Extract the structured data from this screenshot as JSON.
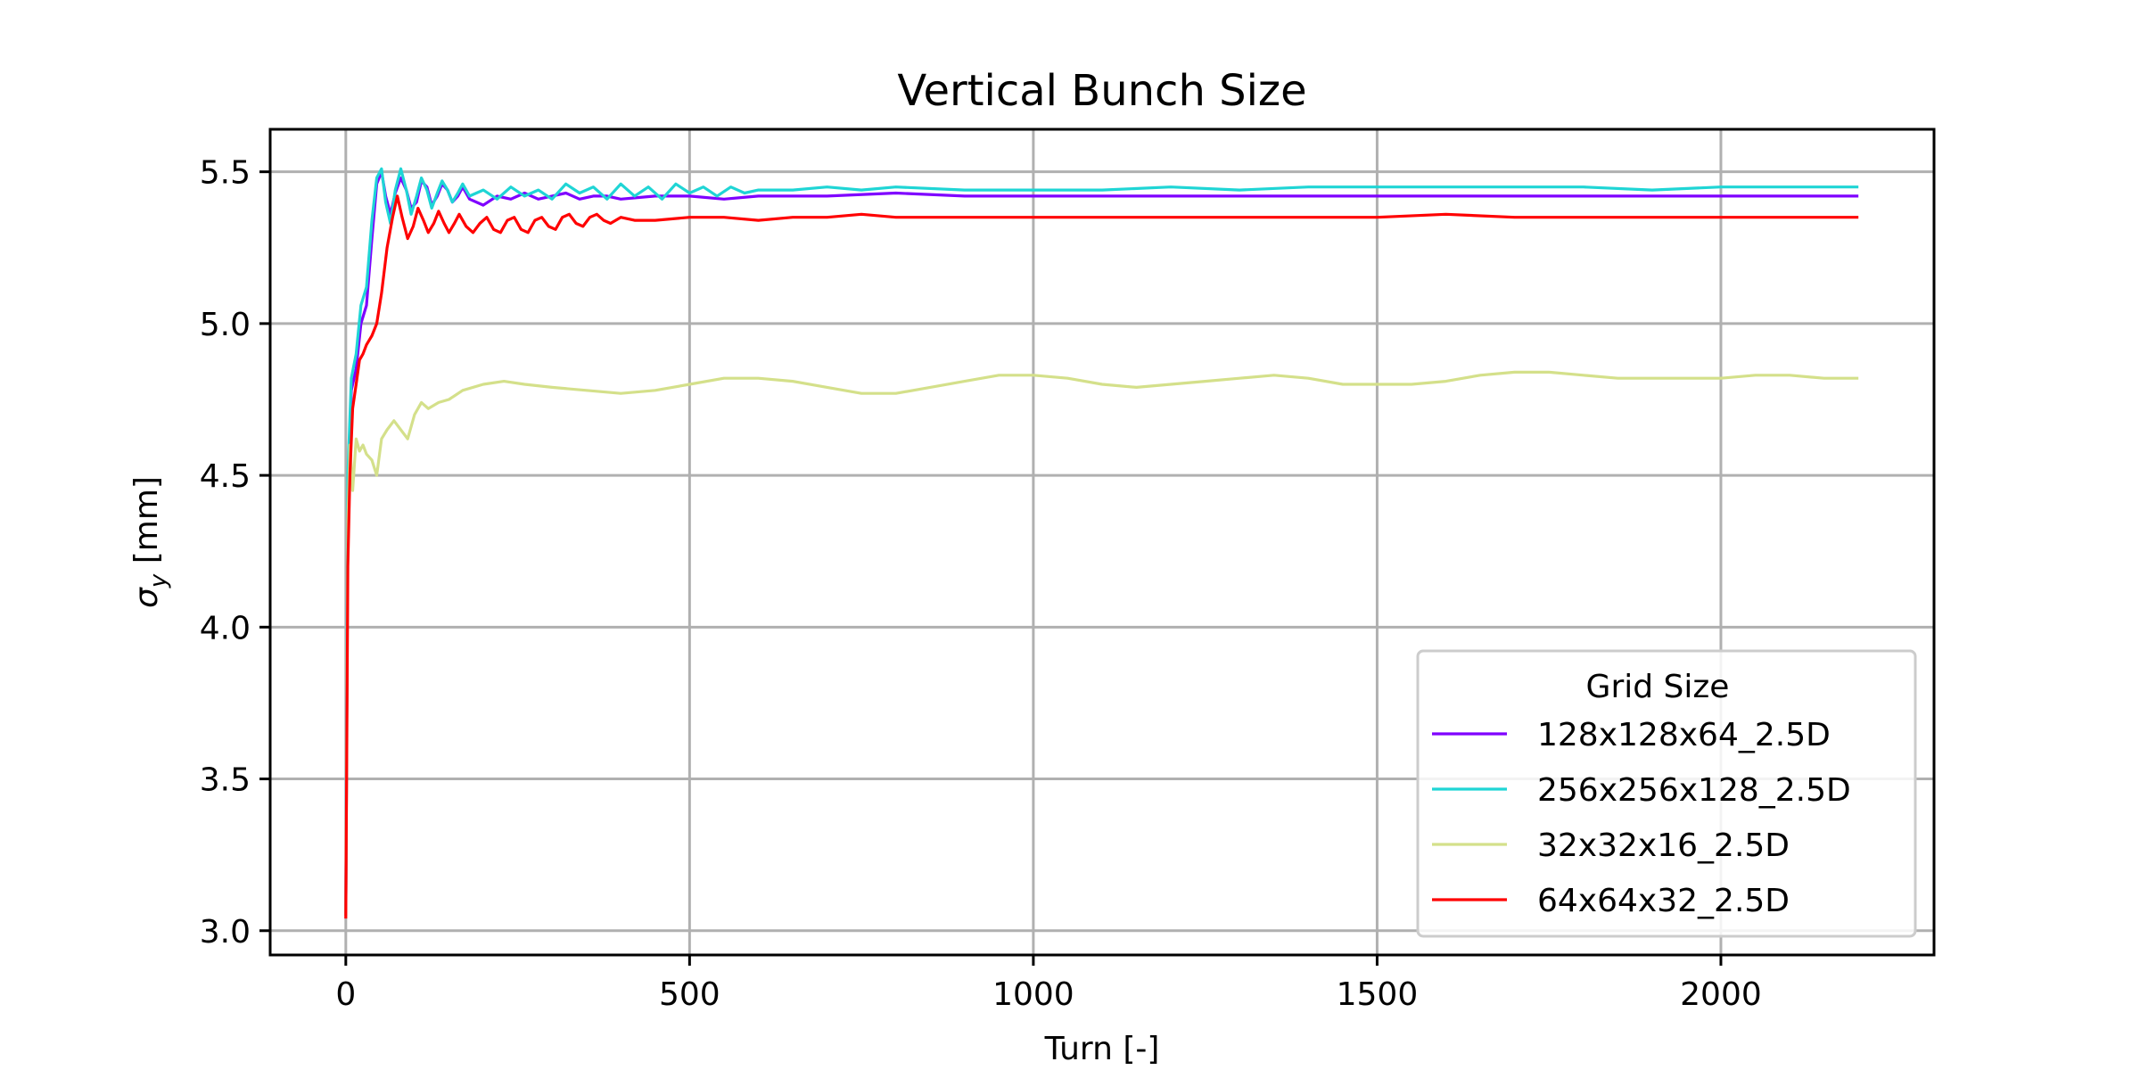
{
  "chart_data": {
    "type": "line",
    "title": "Vertical Bunch Size",
    "xlabel": "Turn [-]",
    "ylabel_symbol": "σ",
    "ylabel_subscript": "y",
    "ylabel_unit": "[mm]",
    "xlim": [
      -110,
      2310
    ],
    "ylim": [
      2.92,
      5.64
    ],
    "xticks": [
      0,
      500,
      1000,
      1500,
      2000
    ],
    "xtick_labels": [
      "0",
      "500",
      "1000",
      "1500",
      "2000"
    ],
    "yticks": [
      3.0,
      3.5,
      4.0,
      4.5,
      5.0,
      5.5
    ],
    "ytick_labels": [
      "3.0",
      "3.5",
      "4.0",
      "4.5",
      "5.0",
      "5.5"
    ],
    "grid": true,
    "legend": {
      "title": "Grid Size",
      "placement": "lower right"
    },
    "series": [
      {
        "name": "128x128x64_2.5D",
        "color": "#7f00ff",
        "x": [
          0,
          3,
          8,
          15,
          22,
          30,
          38,
          45,
          52,
          58,
          65,
          72,
          80,
          88,
          95,
          103,
          110,
          118,
          125,
          133,
          140,
          148,
          155,
          163,
          170,
          180,
          200,
          220,
          240,
          260,
          280,
          300,
          320,
          340,
          360,
          380,
          400,
          450,
          500,
          550,
          600,
          700,
          800,
          900,
          1000,
          1100,
          1200,
          1300,
          1400,
          1500,
          1600,
          1700,
          1800,
          1900,
          2000,
          2100,
          2200
        ],
        "y": [
          3.05,
          4.4,
          4.78,
          4.85,
          5.0,
          5.06,
          5.28,
          5.46,
          5.5,
          5.42,
          5.36,
          5.43,
          5.48,
          5.44,
          5.38,
          5.4,
          5.47,
          5.45,
          5.39,
          5.42,
          5.46,
          5.44,
          5.4,
          5.42,
          5.45,
          5.41,
          5.39,
          5.42,
          5.41,
          5.43,
          5.41,
          5.42,
          5.43,
          5.41,
          5.42,
          5.42,
          5.41,
          5.42,
          5.42,
          5.41,
          5.42,
          5.42,
          5.43,
          5.42,
          5.42,
          5.42,
          5.42,
          5.42,
          5.42,
          5.42,
          5.42,
          5.42,
          5.42,
          5.42,
          5.42,
          5.42,
          5.42
        ]
      },
      {
        "name": "256x256x128_2.5D",
        "color": "#1fd5d5",
        "x": [
          0,
          3,
          8,
          15,
          22,
          30,
          38,
          45,
          52,
          58,
          65,
          72,
          80,
          88,
          95,
          103,
          110,
          118,
          125,
          133,
          140,
          148,
          155,
          163,
          170,
          180,
          200,
          220,
          240,
          260,
          280,
          300,
          320,
          340,
          360,
          380,
          400,
          420,
          440,
          460,
          480,
          500,
          520,
          540,
          560,
          580,
          600,
          650,
          700,
          750,
          800,
          900,
          1000,
          1100,
          1200,
          1300,
          1400,
          1500,
          1600,
          1700,
          1800,
          1900,
          2000,
          2100,
          2200
        ],
        "y": [
          3.05,
          4.5,
          4.82,
          4.9,
          5.06,
          5.12,
          5.34,
          5.48,
          5.51,
          5.4,
          5.33,
          5.44,
          5.51,
          5.44,
          5.36,
          5.42,
          5.48,
          5.44,
          5.38,
          5.43,
          5.47,
          5.44,
          5.4,
          5.43,
          5.46,
          5.42,
          5.44,
          5.41,
          5.45,
          5.42,
          5.44,
          5.41,
          5.46,
          5.43,
          5.45,
          5.41,
          5.46,
          5.42,
          5.45,
          5.41,
          5.46,
          5.43,
          5.45,
          5.42,
          5.45,
          5.43,
          5.44,
          5.44,
          5.45,
          5.44,
          5.45,
          5.44,
          5.44,
          5.44,
          5.45,
          5.44,
          5.45,
          5.45,
          5.45,
          5.45,
          5.45,
          5.44,
          5.45,
          5.45,
          5.45
        ]
      },
      {
        "name": "32x32x16_2.5D",
        "color": "#d4e08a",
        "x": [
          0,
          3,
          6,
          10,
          15,
          20,
          25,
          30,
          38,
          45,
          52,
          60,
          70,
          80,
          90,
          100,
          110,
          120,
          135,
          150,
          170,
          200,
          230,
          260,
          300,
          350,
          400,
          450,
          500,
          550,
          600,
          650,
          700,
          750,
          800,
          850,
          900,
          950,
          1000,
          1050,
          1100,
          1150,
          1200,
          1250,
          1300,
          1350,
          1400,
          1450,
          1500,
          1550,
          1600,
          1650,
          1700,
          1750,
          1800,
          1850,
          1900,
          1950,
          2000,
          2050,
          2100,
          2150,
          2200
        ],
        "y": [
          3.05,
          4.35,
          4.6,
          4.45,
          4.62,
          4.58,
          4.6,
          4.57,
          4.55,
          4.5,
          4.62,
          4.65,
          4.68,
          4.65,
          4.62,
          4.7,
          4.74,
          4.72,
          4.74,
          4.75,
          4.78,
          4.8,
          4.81,
          4.8,
          4.79,
          4.78,
          4.77,
          4.78,
          4.8,
          4.82,
          4.82,
          4.81,
          4.79,
          4.77,
          4.77,
          4.79,
          4.81,
          4.83,
          4.83,
          4.82,
          4.8,
          4.79,
          4.8,
          4.81,
          4.82,
          4.83,
          4.82,
          4.8,
          4.8,
          4.8,
          4.81,
          4.83,
          4.84,
          4.84,
          4.83,
          4.82,
          4.82,
          4.82,
          4.82,
          4.83,
          4.83,
          4.82,
          4.82
        ]
      },
      {
        "name": "64x64x32_2.5D",
        "color": "#ff0000",
        "x": [
          0,
          3,
          6,
          10,
          15,
          20,
          25,
          30,
          38,
          45,
          52,
          60,
          68,
          75,
          82,
          90,
          98,
          105,
          113,
          120,
          128,
          135,
          143,
          150,
          158,
          165,
          175,
          185,
          195,
          205,
          215,
          225,
          235,
          245,
          255,
          265,
          275,
          285,
          295,
          305,
          315,
          325,
          335,
          345,
          355,
          365,
          375,
          385,
          400,
          420,
          450,
          500,
          550,
          600,
          650,
          700,
          750,
          800,
          900,
          1000,
          1100,
          1200,
          1300,
          1400,
          1500,
          1600,
          1700,
          1800,
          1900,
          2000,
          2100,
          2200
        ],
        "y": [
          3.04,
          4.2,
          4.5,
          4.72,
          4.8,
          4.88,
          4.9,
          4.93,
          4.96,
          5.0,
          5.1,
          5.25,
          5.35,
          5.42,
          5.35,
          5.28,
          5.32,
          5.38,
          5.34,
          5.3,
          5.33,
          5.37,
          5.33,
          5.3,
          5.33,
          5.36,
          5.32,
          5.3,
          5.33,
          5.35,
          5.31,
          5.3,
          5.34,
          5.35,
          5.31,
          5.3,
          5.34,
          5.35,
          5.32,
          5.31,
          5.35,
          5.36,
          5.33,
          5.32,
          5.35,
          5.36,
          5.34,
          5.33,
          5.35,
          5.34,
          5.34,
          5.35,
          5.35,
          5.34,
          5.35,
          5.35,
          5.36,
          5.35,
          5.35,
          5.35,
          5.35,
          5.35,
          5.35,
          5.35,
          5.35,
          5.36,
          5.35,
          5.35,
          5.35,
          5.35,
          5.35,
          5.35
        ]
      }
    ]
  }
}
